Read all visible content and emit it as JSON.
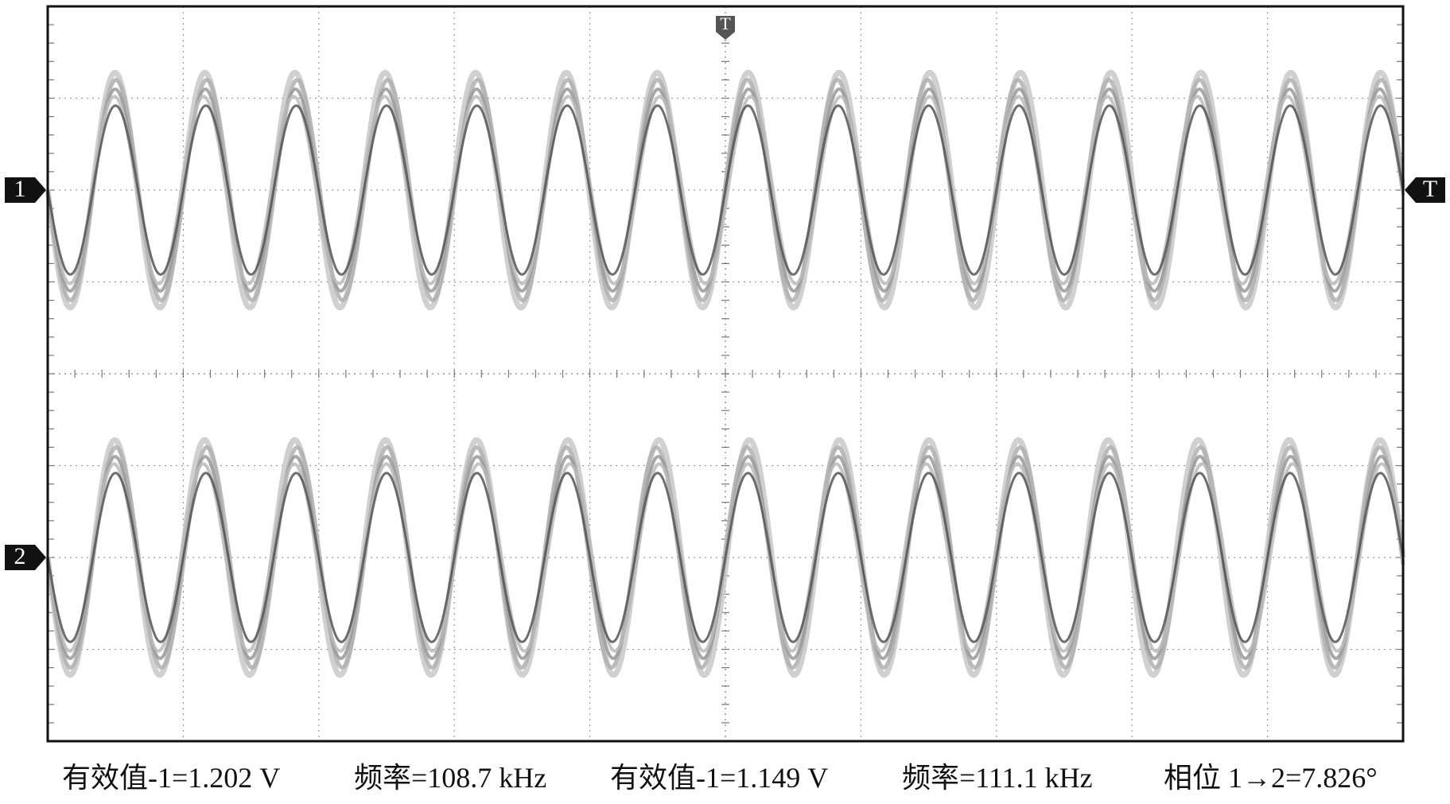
{
  "markers": {
    "channel_1": "1",
    "channel_2": "2",
    "trigger_level": "T",
    "trigger_position": "T"
  },
  "measurements": [
    "有效值-1=1.202 V",
    "频率=108.7 kHz",
    "有效值-1=1.149 V",
    "频率=111.1 kHz",
    "相位 1→2=7.826°"
  ]
}
